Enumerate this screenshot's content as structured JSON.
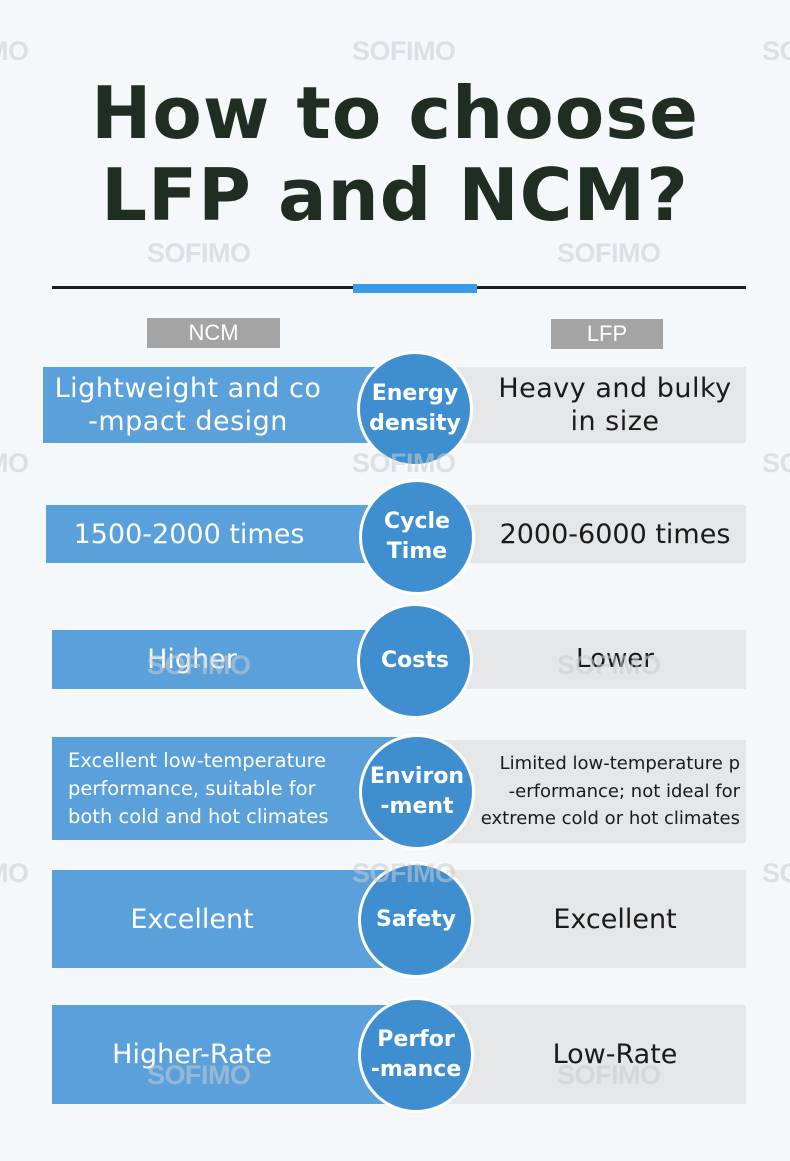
{
  "title": {
    "line1": "How to choose",
    "line2": "LFP and NCM?"
  },
  "watermark": "SOFIMO",
  "headers": {
    "ncm": "NCM",
    "lfp": "LFP"
  },
  "rows": [
    {
      "category": "Energy\ndensity",
      "ncm": "Lightweight and co\n-mpact design",
      "lfp": "Heavy and bulky\nin size"
    },
    {
      "category": "Cycle\nTime",
      "ncm": "1500-2000 times",
      "lfp": "2000-6000 times"
    },
    {
      "category": "Costs",
      "ncm": "Higher",
      "lfp": "Lower"
    },
    {
      "category": "Environ\n-ment",
      "ncm": "Excellent low-temperature\nperformance, suitable for\nboth cold and hot climates",
      "lfp": "Limited low-temperature p\n-erformance; not ideal for\nextreme cold or hot climates"
    },
    {
      "category": "Safety",
      "ncm": "Excellent",
      "lfp": "Excellent"
    },
    {
      "category": "Perfor\n-mance",
      "ncm": "Higher-Rate",
      "lfp": "Low-Rate"
    }
  ],
  "colors": {
    "ncm_bar": "#5aa0db",
    "lfp_bar": "#e4e6e8",
    "circle": "#3f8fd0",
    "accent": "#3d9ae8",
    "title": "#1f2d22"
  }
}
